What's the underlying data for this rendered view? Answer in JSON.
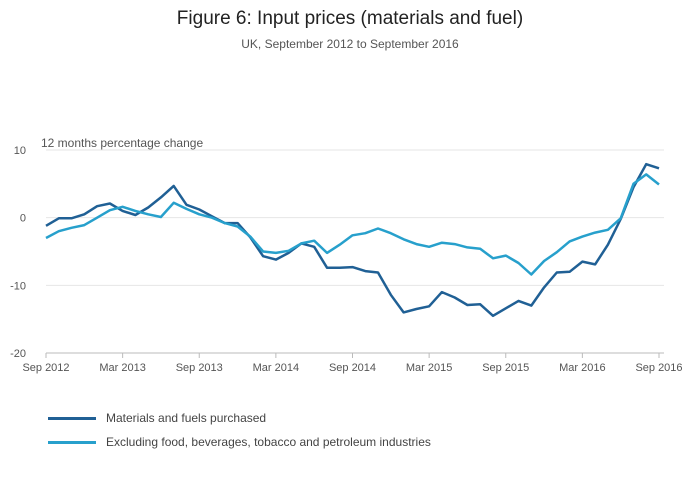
{
  "chart_data": {
    "type": "line",
    "title": "Figure 6: Input prices (materials and fuel)",
    "subtitle": "UK, September 2012 to September 2016",
    "ylabel": "12 months percentage change",
    "ylim": [
      -20,
      10
    ],
    "yticks": [
      10,
      0,
      -10,
      -20
    ],
    "grid": true,
    "legend_position": "bottom-left",
    "x_tick_labels": [
      "Sep 2012",
      "Mar 2013",
      "Sep 2013",
      "Mar 2014",
      "Sep 2014",
      "Mar 2015",
      "Sep 2015",
      "Mar 2016",
      "Sep 2016"
    ],
    "x": [
      "Sep 2012",
      "Oct 2012",
      "Nov 2012",
      "Dec 2012",
      "Jan 2013",
      "Feb 2013",
      "Mar 2013",
      "Apr 2013",
      "May 2013",
      "Jun 2013",
      "Jul 2013",
      "Aug 2013",
      "Sep 2013",
      "Oct 2013",
      "Nov 2013",
      "Dec 2013",
      "Jan 2014",
      "Feb 2014",
      "Mar 2014",
      "Apr 2014",
      "May 2014",
      "Jun 2014",
      "Jul 2014",
      "Aug 2014",
      "Sep 2014",
      "Oct 2014",
      "Nov 2014",
      "Dec 2014",
      "Jan 2015",
      "Feb 2015",
      "Mar 2015",
      "Apr 2015",
      "May 2015",
      "Jun 2015",
      "Jul 2015",
      "Aug 2015",
      "Sep 2015",
      "Oct 2015",
      "Nov 2015",
      "Dec 2015",
      "Jan 2016",
      "Feb 2016",
      "Mar 2016",
      "Apr 2016",
      "May 2016",
      "Jun 2016",
      "Jul 2016",
      "Aug 2016",
      "Sep 2016"
    ],
    "series": [
      {
        "name": "Materials and fuels purchased",
        "color": "#206095",
        "values": [
          -1.2,
          -0.1,
          -0.1,
          0.5,
          1.7,
          2.1,
          1.0,
          0.4,
          1.5,
          3.0,
          4.7,
          1.9,
          1.2,
          0.2,
          -0.8,
          -0.8,
          -2.9,
          -5.7,
          -6.2,
          -5.2,
          -3.8,
          -4.3,
          -7.4,
          -7.4,
          -7.3,
          -7.9,
          -8.1,
          -11.4,
          -14.0,
          -13.5,
          -13.1,
          -11.0,
          -11.8,
          -12.9,
          -12.8,
          -14.5,
          -13.4,
          -12.3,
          -13.0,
          -10.3,
          -8.1,
          -8.0,
          -6.5,
          -6.9,
          -4.0,
          -0.2,
          4.5,
          7.9,
          7.3
        ]
      },
      {
        "name": "Excluding food, beverages, tobacco and petroleum industries",
        "color": "#27a0cc",
        "values": [
          -3.0,
          -2.0,
          -1.5,
          -1.1,
          0.0,
          1.1,
          1.6,
          1.0,
          0.5,
          0.1,
          2.2,
          1.3,
          0.5,
          0.0,
          -0.8,
          -1.3,
          -2.8,
          -5.0,
          -5.2,
          -4.9,
          -3.8,
          -3.4,
          -5.2,
          -4.0,
          -2.6,
          -2.3,
          -1.6,
          -2.3,
          -3.2,
          -3.9,
          -4.3,
          -3.7,
          -3.9,
          -4.4,
          -4.6,
          -6.0,
          -5.6,
          -6.7,
          -8.4,
          -6.4,
          -5.1,
          -3.5,
          -2.8,
          -2.2,
          -1.8,
          -0.1,
          5.0,
          6.4,
          4.9
        ]
      }
    ]
  }
}
